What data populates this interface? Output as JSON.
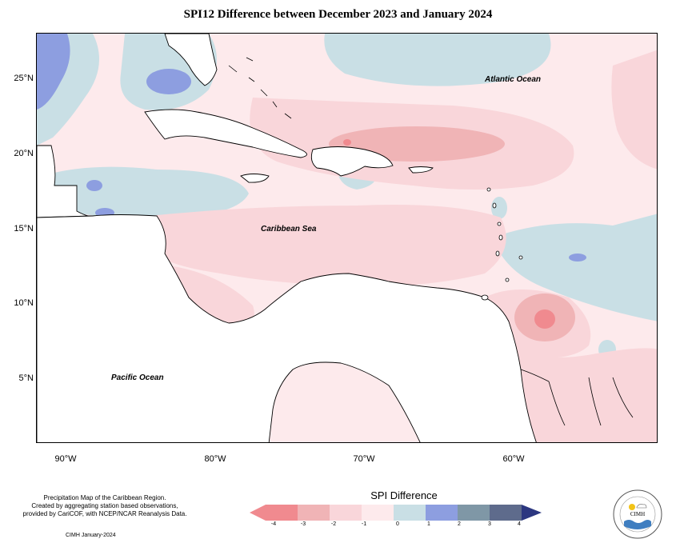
{
  "title": "SPI12 Difference between December 2023 and January 2024",
  "map": {
    "y_ticks": [
      "25°N",
      "20°N",
      "15°N",
      "10°N",
      "5°N"
    ],
    "x_ticks": [
      "90°W",
      "80°W",
      "70°W",
      "60°W"
    ],
    "labels": {
      "atlantic": "Atlantic Ocean",
      "caribbean": "Caribbean Sea",
      "pacific": "Pacific Ocean"
    }
  },
  "caption": {
    "line1": "Precipitation Map of the Caribbean Region.",
    "line2": "Created by aggregating station based observations,",
    "line3": "provided by CariCOF, with NCEP/NCAR Reanalysis Data.",
    "credit": "CIMH January-2024"
  },
  "legend": {
    "title": "SPI Difference",
    "ticks": [
      "-4",
      "-3",
      "-2",
      "-1",
      "0",
      "1",
      "2",
      "3",
      "4"
    ],
    "colors": [
      "#f08a8f",
      "#f0b4b6",
      "#f9d6da",
      "#fdeaec",
      "#c9dfe5",
      "#8d9ee0",
      "#7f97a6",
      "#5e6b8c",
      "#2c3780"
    ]
  },
  "logo": {
    "org": "CIMH"
  }
}
